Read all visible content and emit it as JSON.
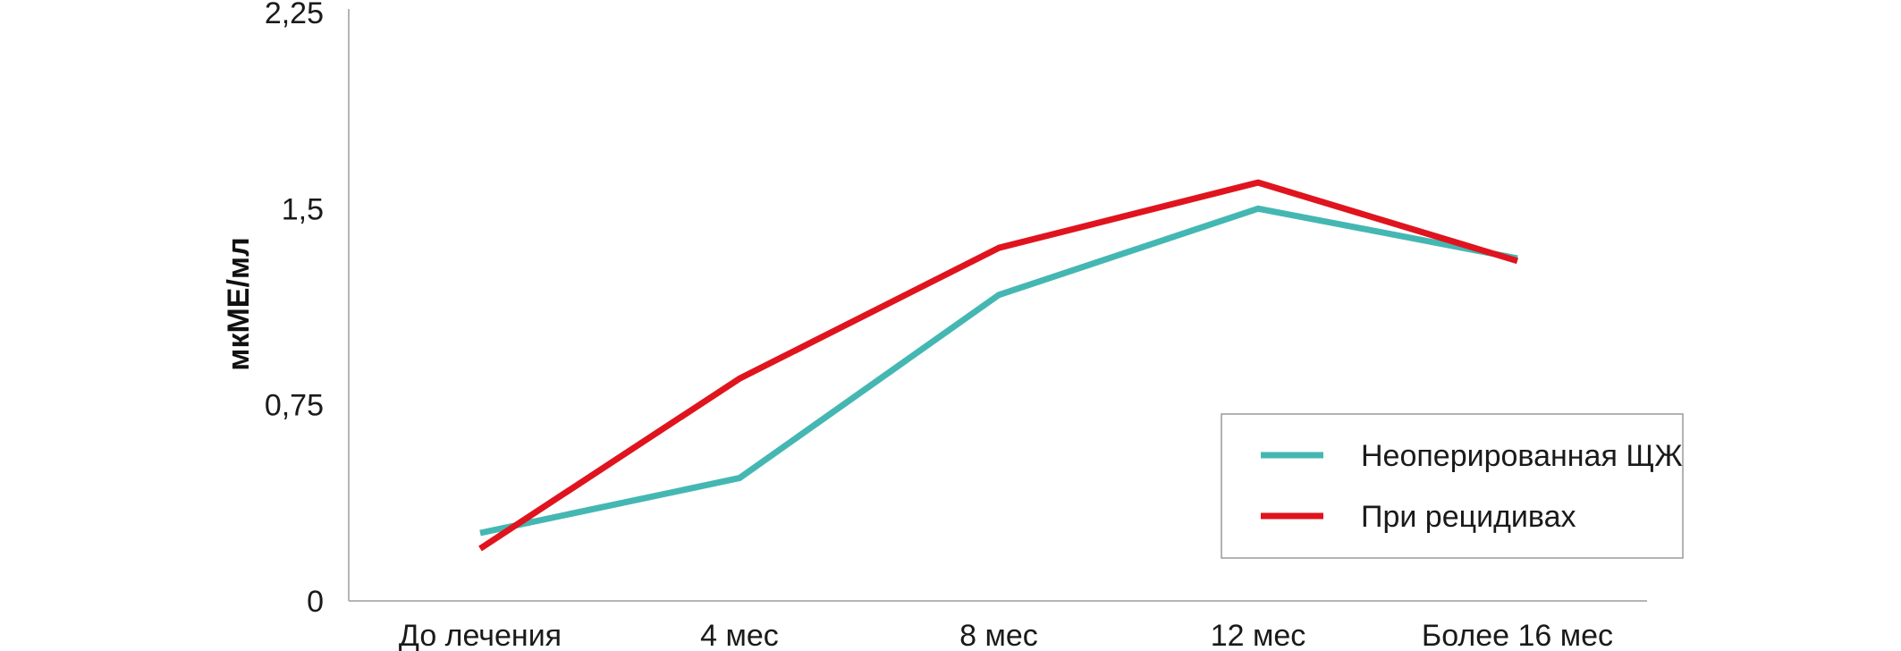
{
  "chart_data": {
    "type": "line",
    "categories": [
      "До лечения",
      "4 мес",
      "8 мес",
      "12 мес",
      "Более 16 мес"
    ],
    "series": [
      {
        "name": "Неоперированная ЩЖ",
        "color": "#45b7b3",
        "values": [
          0.26,
          0.47,
          1.17,
          1.5,
          1.31
        ]
      },
      {
        "name": "При рецидивах",
        "color": "#e0141e",
        "values": [
          0.2,
          0.85,
          1.35,
          1.6,
          1.3
        ]
      }
    ],
    "ylabel": "мкМЕ/мл",
    "xlabel": "",
    "ylim": [
      0,
      2.25
    ],
    "yticks": [
      "0",
      "0,75",
      "1,5",
      "2,25"
    ],
    "ytick_values": [
      0,
      0.75,
      1.5,
      2.25
    ],
    "grid": false,
    "legend_position": "bottom-right"
  }
}
